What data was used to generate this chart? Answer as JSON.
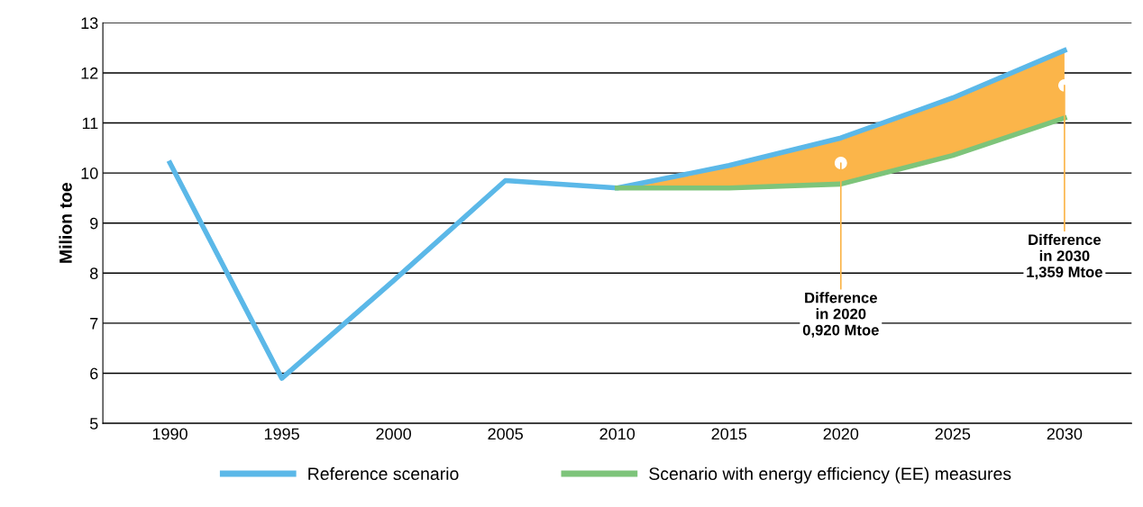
{
  "chart_data": {
    "type": "line",
    "ylabel": "Milion toe",
    "categories": [
      "1990",
      "1995",
      "2000",
      "2005",
      "2010",
      "2015",
      "2020",
      "2025",
      "2030"
    ],
    "series": [
      {
        "name": "Reference scenario",
        "color": "#5bb8e8",
        "values": [
          10.2,
          5.9,
          7.85,
          9.85,
          9.7,
          10.15,
          10.7,
          11.5,
          12.45
        ]
      },
      {
        "name": "Scenario with energy efficiency (EE) measures",
        "color": "#7dc47a",
        "values": [
          null,
          null,
          null,
          null,
          9.7,
          9.7,
          9.78,
          10.35,
          11.1
        ]
      },
      {
        "type": "area",
        "color": "#fbb54a",
        "values": [
          null,
          null,
          null,
          null,
          9.7,
          10.15,
          10.7,
          11.5,
          12.45
        ]
      }
    ],
    "ylim": [
      5,
      13
    ],
    "yticks": [
      5,
      6,
      7,
      8,
      9,
      10,
      11,
      12,
      13
    ],
    "grid": "y",
    "legend": "bottom",
    "marker": "none",
    "line_style": "solid",
    "annotations": [
      {
        "text": "Difference\nin 2020\n0,920 Mtoe",
        "x": "2020",
        "y": 10.2
      },
      {
        "text": "Difference\nin 2030\n1,359 Mtoe",
        "x": "2030",
        "y": 11.75
      }
    ]
  }
}
